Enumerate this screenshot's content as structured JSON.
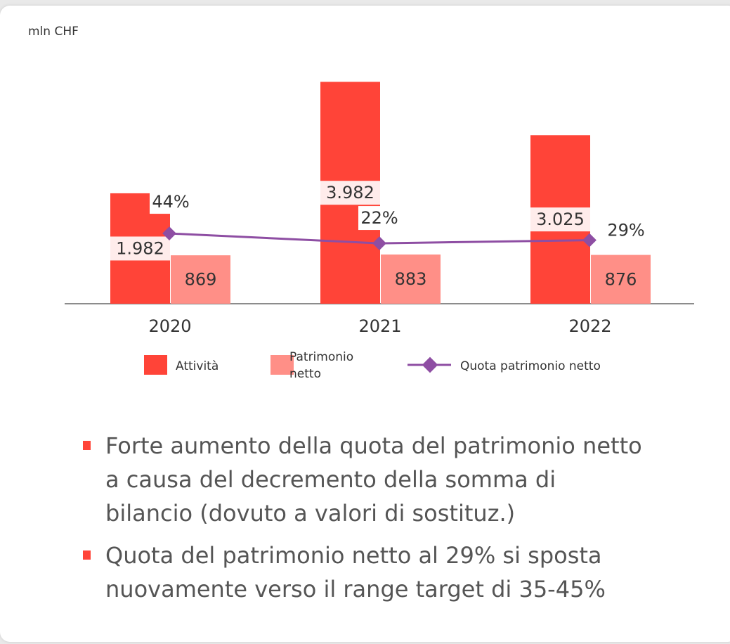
{
  "chart_data": {
    "type": "bar",
    "unit_label": "mln CHF",
    "categories": [
      "2020",
      "2021",
      "2022"
    ],
    "ylim": [
      0,
      4000
    ],
    "y2lim": [
      -113,
      385
    ],
    "series": [
      {
        "name": "Attività",
        "color": "#ff4438",
        "values": [
          1982,
          3982,
          3025
        ],
        "value_labels": [
          "1.982",
          "3.982",
          "3.025"
        ]
      },
      {
        "name": "Patrimonio netto",
        "color": "#ff8f87",
        "values": [
          869,
          883,
          876
        ]
      },
      {
        "name": "Quota patrimonio netto",
        "type": "line",
        "axis": "y2",
        "color": "#8e4ea3",
        "values": [
          44,
          22,
          29
        ],
        "value_labels": [
          "44%",
          "22%",
          "29%"
        ]
      }
    ]
  },
  "bullets": [
    "Forte aumento della quota del patrimonio netto a causa del decremento della somma di bilancio (dovuto a valori di sostituz.)",
    "Quota del patrimonio netto al 29% si sposta nuovamente verso il range target di 35-45%"
  ]
}
